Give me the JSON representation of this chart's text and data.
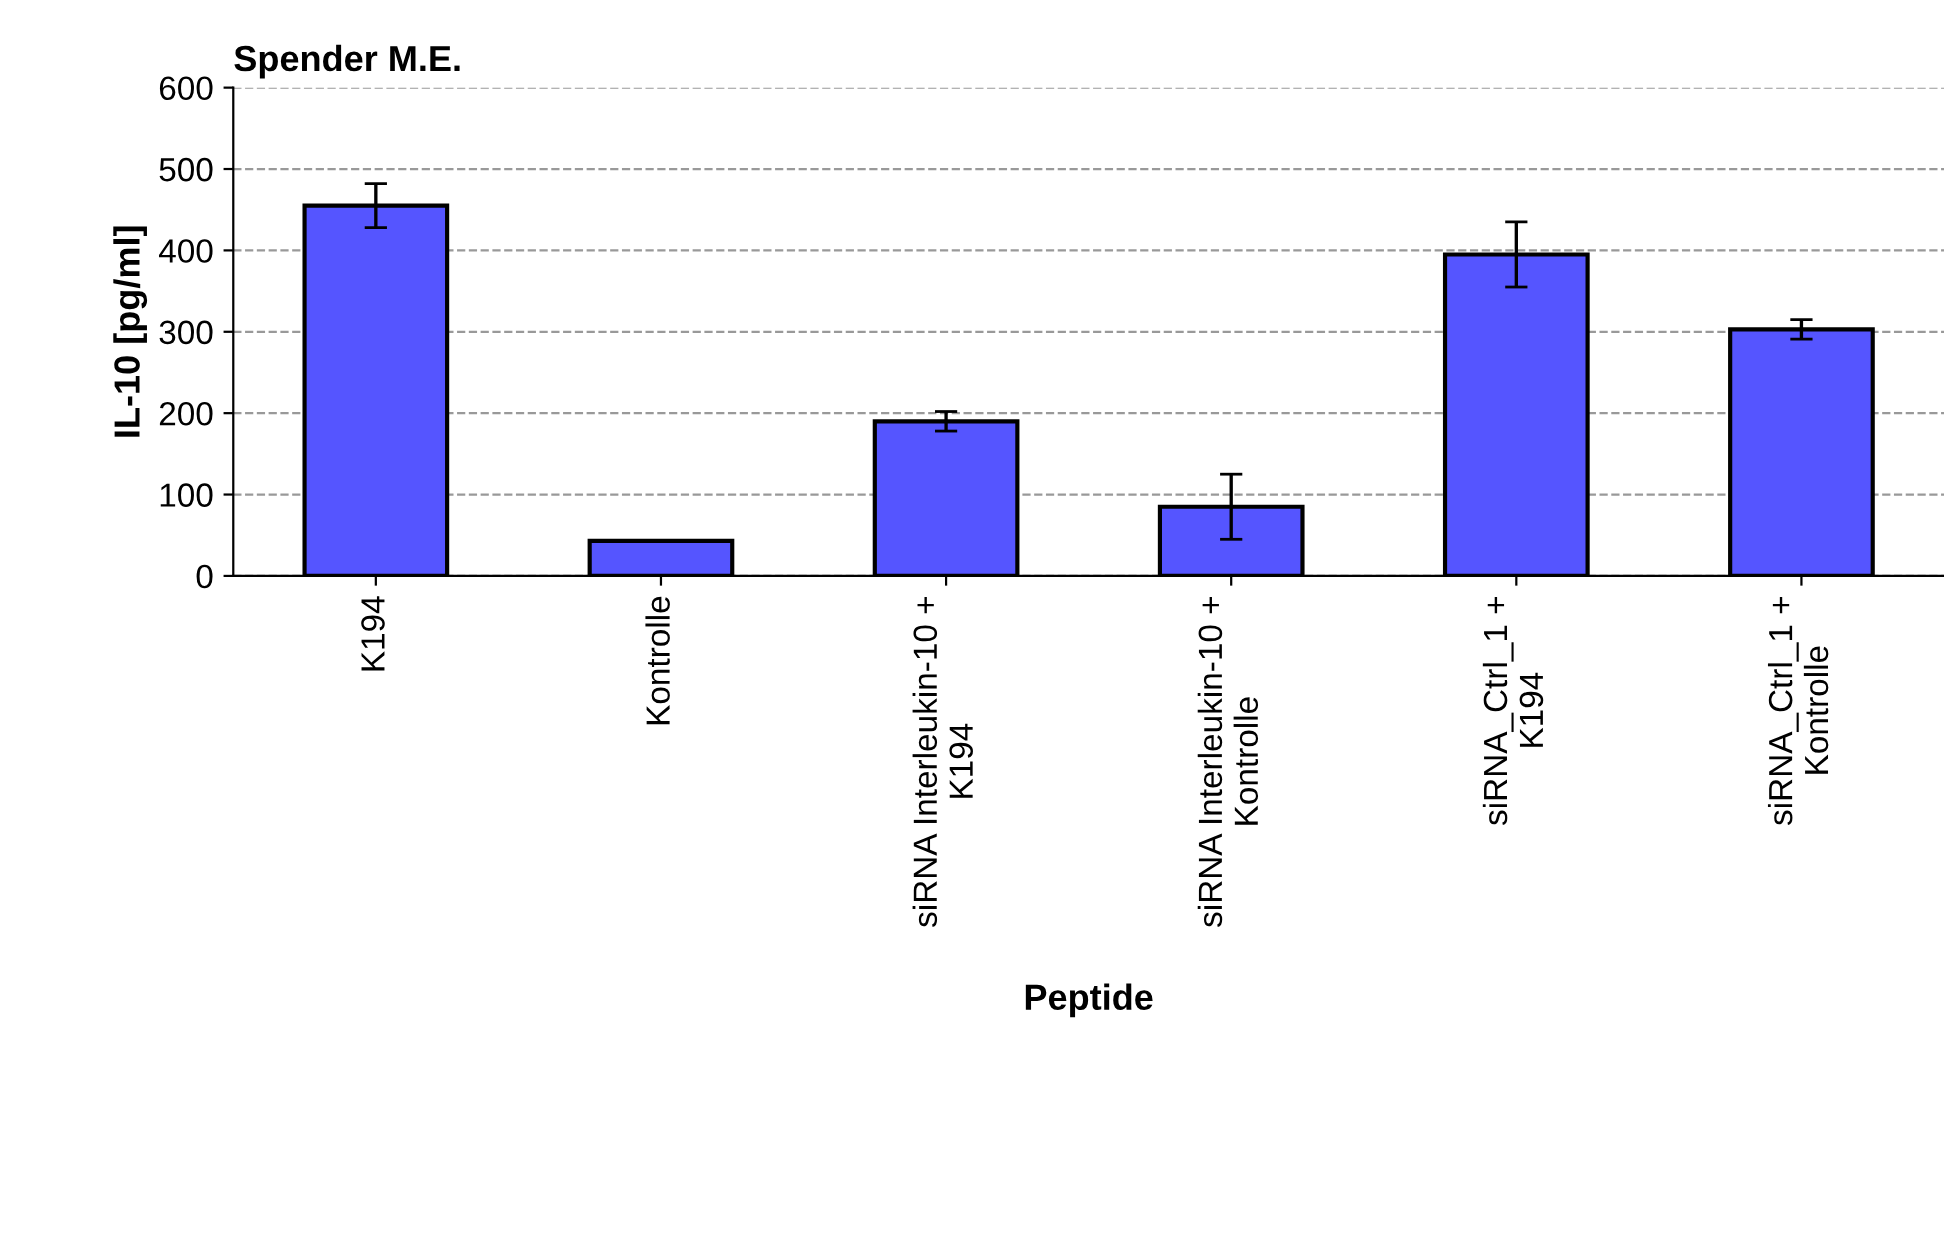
{
  "chart_data": {
    "type": "bar",
    "title": "Spender M.E.",
    "xlabel": "Peptide",
    "ylabel": "IL-10 [pg/ml]",
    "categories": [
      "K194",
      "Kontrolle",
      "siRNA Interleukin-10 +\nK194",
      "siRNA Interleukin-10 +\nKontrolle",
      "siRNA_Ctrl_1 +\nK194",
      "siRNA_Ctrl_1 +\nKontrolle"
    ],
    "values": [
      455,
      43,
      190,
      85,
      395,
      303
    ],
    "errors": [
      27,
      null,
      12,
      40,
      40,
      12
    ],
    "color": "#5555ff",
    "ylim": [
      0,
      600
    ],
    "yticks": [
      0,
      100,
      200,
      300,
      400,
      500,
      600
    ],
    "grid": "y",
    "legend": false
  }
}
